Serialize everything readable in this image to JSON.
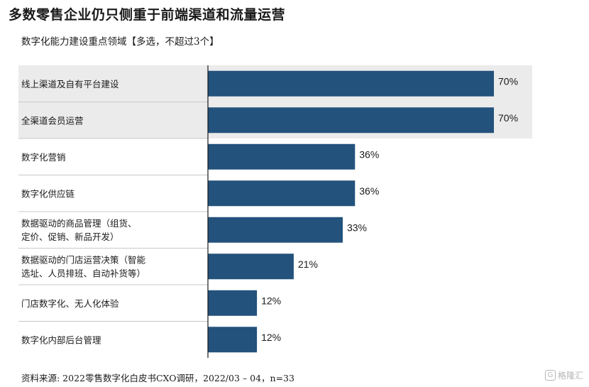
{
  "title": "多数零售企业仍只侧重于前端渠道和流量运营",
  "subtitle": "数字化能力建设重点领域【多选，不超过3个】",
  "source": "资料来源: 2022零售数字化白皮书CXO调研，2022/03 – 04，n=33",
  "watermark": "格隆汇",
  "chart_data": {
    "type": "bar",
    "orientation": "horizontal",
    "categories": [
      [
        "线上渠道及自有平台建设"
      ],
      [
        "全渠道会员运营"
      ],
      [
        "数字化营销"
      ],
      [
        "数字化供应链"
      ],
      [
        "数据驱动的商品管理（组货、",
        "定价、促销、新品开发）"
      ],
      [
        "数据驱动的门店运营决策（智能",
        "选址、人员排班、自动补货等）"
      ],
      [
        "门店数字化、无人化体验"
      ],
      [
        "数字化内部后台管理"
      ]
    ],
    "values": [
      70,
      70,
      36,
      36,
      33,
      21,
      12,
      12
    ],
    "value_labels": [
      "70%",
      "70%",
      "36%",
      "36%",
      "33%",
      "21%",
      "12%",
      "12%"
    ],
    "highlighted_rows": [
      0,
      1
    ],
    "xlim": [
      0,
      100
    ],
    "bar_color": "#23527c",
    "highlight_color": "#ebebeb",
    "grid": false
  }
}
